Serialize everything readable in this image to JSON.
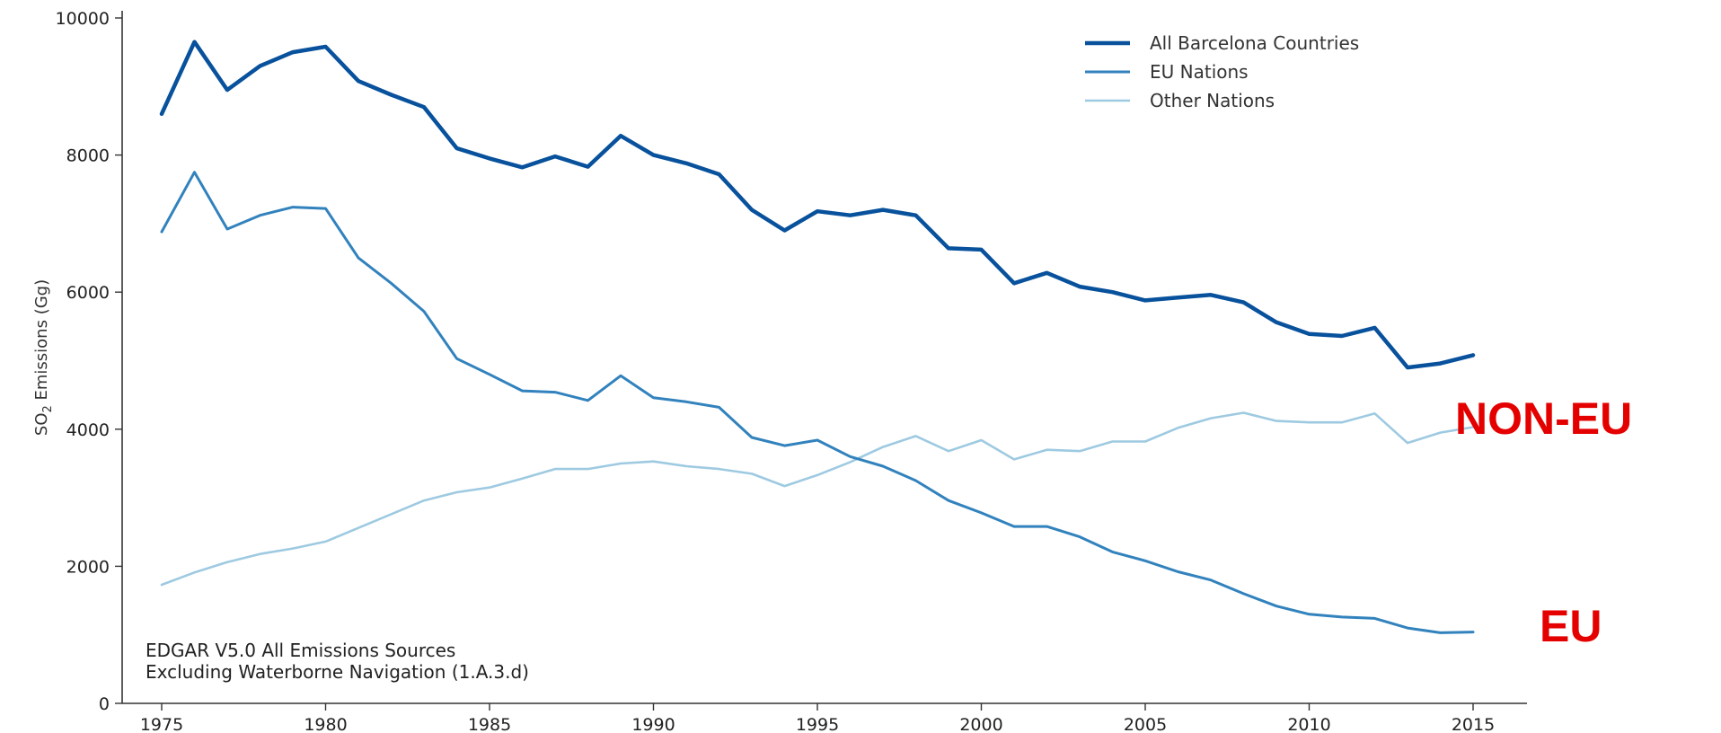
{
  "chart_data": {
    "type": "line",
    "title": "",
    "xlabel": "",
    "ylabel": "SO",
    "ylabel_sub": "2",
    "ylabel_suffix": " Emissions (Gg)",
    "x": [
      1975,
      1976,
      1977,
      1978,
      1979,
      1980,
      1981,
      1982,
      1983,
      1984,
      1985,
      1986,
      1987,
      1988,
      1989,
      1990,
      1991,
      1992,
      1993,
      1994,
      1995,
      1996,
      1997,
      1998,
      1999,
      2000,
      2001,
      2002,
      2003,
      2004,
      2005,
      2006,
      2007,
      2008,
      2009,
      2010,
      2011,
      2012,
      2013,
      2014,
      2015
    ],
    "xlim": [
      1973,
      2016
    ],
    "ylim": [
      0,
      10000
    ],
    "x_ticks": [
      1975,
      1980,
      1985,
      1990,
      1995,
      2000,
      2005,
      2010,
      2015
    ],
    "y_ticks": [
      0,
      2000,
      4000,
      6000,
      8000,
      10000
    ],
    "grid": false,
    "legend_position": "top-right",
    "series": [
      {
        "name": "All Barcelona Countries",
        "color": "#08519c",
        "values": [
          8600,
          9650,
          8950,
          9300,
          9500,
          9580,
          9080,
          8880,
          8700,
          8100,
          7950,
          7820,
          7980,
          7830,
          8280,
          8000,
          7880,
          7720,
          7200,
          6900,
          7180,
          7120,
          7200,
          7120,
          6640,
          6620,
          6130,
          6280,
          6080,
          6000,
          5880,
          5920,
          5960,
          5850,
          5560,
          5390,
          5360,
          5480,
          4900,
          4960,
          5080
        ]
      },
      {
        "name": "EU Nations",
        "color": "#3182bd",
        "values": [
          6880,
          7750,
          6920,
          7120,
          7240,
          7220,
          6500,
          6130,
          5720,
          5030,
          4800,
          4560,
          4540,
          4420,
          4780,
          4460,
          4400,
          4320,
          3880,
          3760,
          3840,
          3600,
          3460,
          3250,
          2960,
          2780,
          2580,
          2580,
          2430,
          2210,
          2080,
          1920,
          1800,
          1600,
          1420,
          1300,
          1260,
          1240,
          1100,
          1030,
          1040
        ]
      },
      {
        "name": "Other Nations",
        "color": "#9ecae1",
        "values": [
          1730,
          1910,
          2060,
          2180,
          2260,
          2360,
          2560,
          2760,
          2960,
          3080,
          3150,
          3280,
          3420,
          3420,
          3500,
          3530,
          3460,
          3420,
          3350,
          3170,
          3330,
          3520,
          3740,
          3900,
          3680,
          3840,
          3560,
          3700,
          3680,
          3820,
          3820,
          4020,
          4160,
          4240,
          4120,
          4100,
          4100,
          4230,
          3800,
          3950,
          4030
        ]
      }
    ],
    "annotations": [
      "EDGAR V5.0 All Emissions Sources",
      "Excluding Waterborne Navigation (1.A.3.d)"
    ],
    "labels": {
      "non_eu": "NON-EU",
      "eu": "EU"
    }
  }
}
